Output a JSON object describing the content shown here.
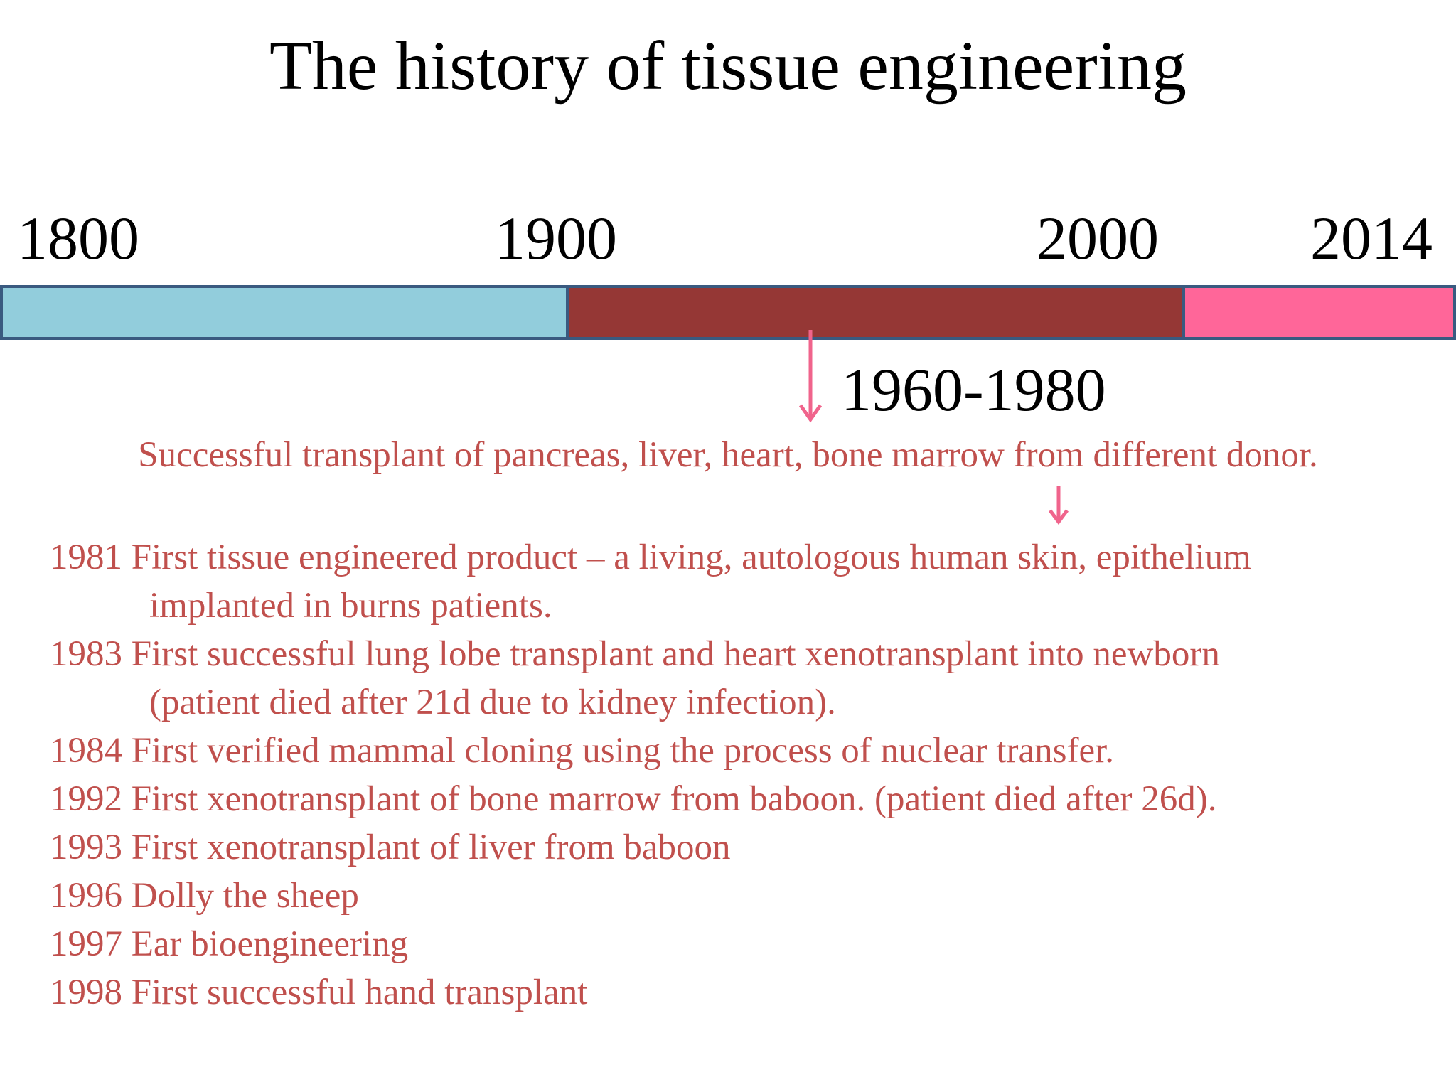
{
  "title": "The history of tissue engineering",
  "timeline": {
    "year_labels": [
      "1800",
      "1900",
      "2000",
      "2014"
    ],
    "segments": [
      {
        "from": "1800",
        "to": "1900",
        "color": "#92cddc"
      },
      {
        "from": "1900",
        "to": "2000",
        "color": "#953735"
      },
      {
        "from": "2000",
        "to": "2014",
        "color": "#ff6699"
      }
    ],
    "border_color": "#3a5a80",
    "arrow_color": "#f0648c"
  },
  "period_label": "1960-1980",
  "summary": "Successful transplant of pancreas, liver, heart, bone marrow from different donor.",
  "text_color": "#c0504d",
  "events": [
    {
      "line1": "1981 First tissue engineered product – a living, autologous human skin, epithelium",
      "line2": "implanted in burns patients."
    },
    {
      "line1": "1983 First successful lung lobe transplant and heart xenotransplant into newborn",
      "line2": "(patient died after 21d due to kidney infection)."
    },
    {
      "line1": "1984 First verified mammal cloning using the process of nuclear transfer."
    },
    {
      "line1": "1992 First xenotransplant of bone marrow from baboon. (patient died after 26d)."
    },
    {
      "line1": "1993 First xenotransplant of liver from baboon"
    },
    {
      "line1": "1996 Dolly the sheep"
    },
    {
      "line1": "1997 Ear bioengineering"
    },
    {
      "line1": "1998 First successful hand transplant"
    }
  ]
}
